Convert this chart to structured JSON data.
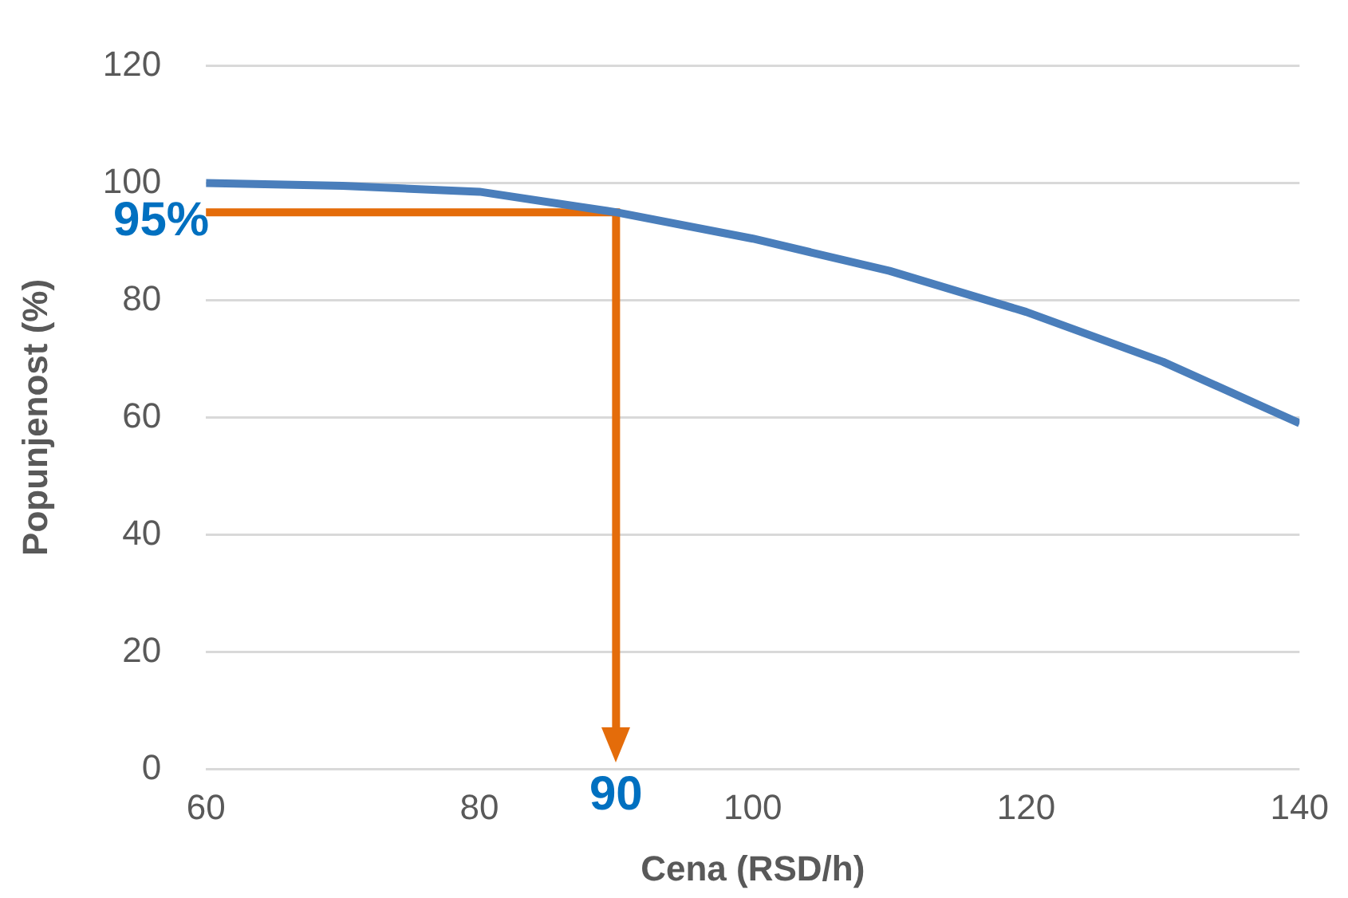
{
  "chart_data": {
    "type": "line",
    "xlabel": "Cena (RSD/h)",
    "ylabel": "Popunjenost (%)",
    "xlim": [
      60,
      140
    ],
    "xticks": [
      60,
      80,
      100,
      120,
      140
    ],
    "ylim": [
      0,
      120
    ],
    "yticks": [
      0,
      20,
      40,
      60,
      80,
      100,
      120
    ],
    "grid": "y",
    "legend": false,
    "marker": "none",
    "series": [
      {
        "color": "#4a7ebb",
        "x": [
          60,
          70,
          80,
          90,
          100,
          110,
          120,
          130,
          140
        ],
        "values": [
          100,
          99.5,
          98.5,
          95,
          90.5,
          85,
          78,
          69.5,
          59
        ]
      }
    ],
    "ref_lines": [
      {
        "axis": "y",
        "value": 95,
        "label": "95%",
        "color": "#e46c0a"
      },
      {
        "axis": "x",
        "value": 90,
        "label": "90",
        "color": "#e46c0a"
      }
    ]
  }
}
